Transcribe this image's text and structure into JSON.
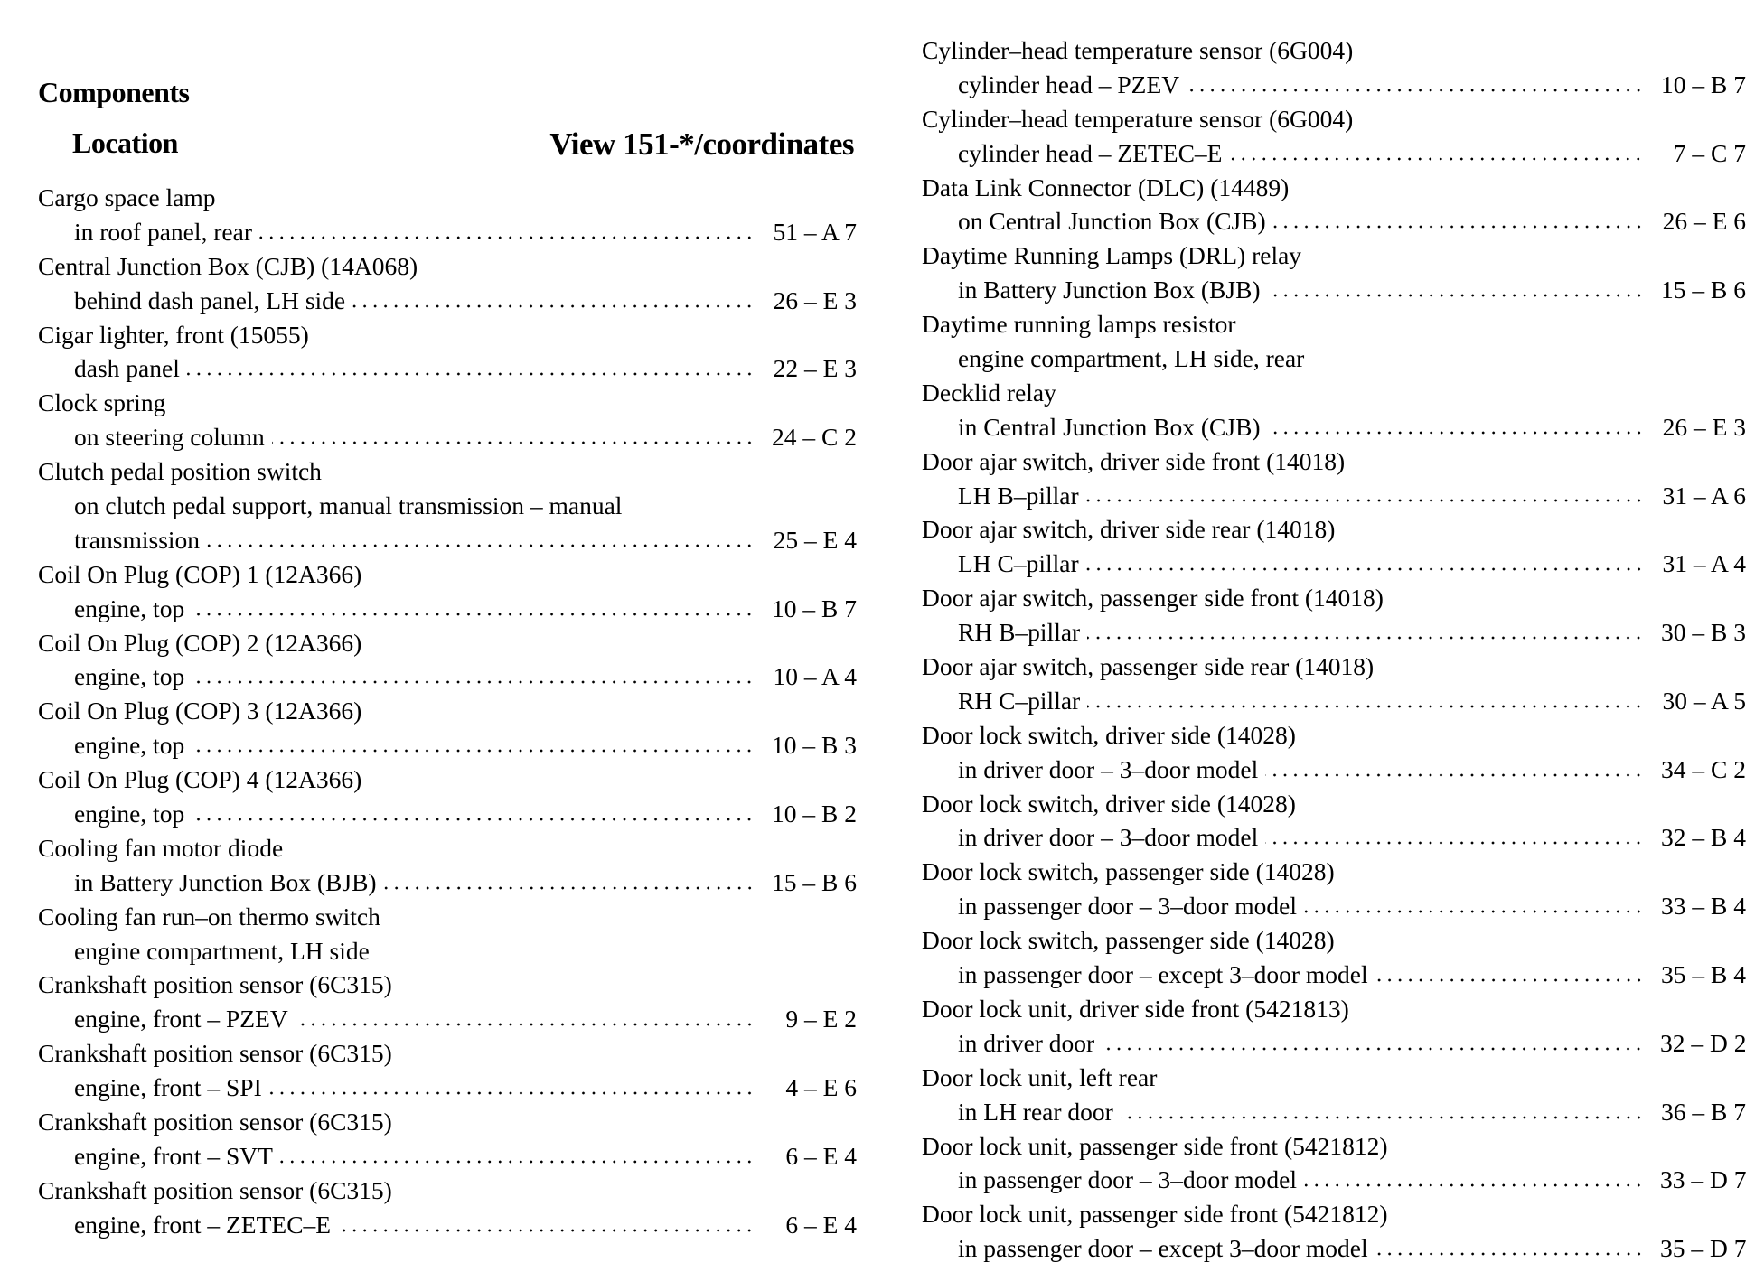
{
  "header": {
    "title": "Components",
    "location_label": "Location",
    "view_label": "View 151-*/coordinates"
  },
  "left": [
    {
      "name": "Cargo space lamp",
      "location": [
        "in roof panel, rear"
      ],
      "ref": "51 – A 7"
    },
    {
      "name": "Central Junction Box (CJB) (14A068)",
      "location": [
        "behind dash panel, LH side"
      ],
      "ref": "26 – E 3"
    },
    {
      "name": "Cigar lighter, front (15055)",
      "location": [
        "dash panel"
      ],
      "ref": "22 – E 3"
    },
    {
      "name": "Clock spring",
      "location": [
        "on steering column"
      ],
      "ref": "24 – C 2"
    },
    {
      "name": "Clutch pedal position switch",
      "location": [
        "on clutch pedal support, manual transmission – manual",
        "transmission"
      ],
      "ref": "25 – E 4"
    },
    {
      "name": "Coil On Plug (COP) 1 (12A366)",
      "location": [
        "engine, top"
      ],
      "ref": "10 – B 7"
    },
    {
      "name": "Coil On Plug (COP) 2 (12A366)",
      "location": [
        "engine, top"
      ],
      "ref": "10 – A 4"
    },
    {
      "name": "Coil On Plug (COP) 3 (12A366)",
      "location": [
        "engine, top"
      ],
      "ref": "10 – B 3"
    },
    {
      "name": "Coil On Plug (COP) 4 (12A366)",
      "location": [
        "engine, top"
      ],
      "ref": "10 – B 2"
    },
    {
      "name": "Cooling fan motor diode",
      "location": [
        "in Battery Junction Box (BJB)"
      ],
      "ref": "15 – B 6"
    },
    {
      "name": "Cooling fan run–on thermo switch",
      "location": [
        "engine compartment, LH side"
      ],
      "ref": ""
    },
    {
      "name": "Crankshaft position sensor (6C315)",
      "location": [
        "engine, front – PZEV"
      ],
      "ref": "9 – E 2"
    },
    {
      "name": "Crankshaft position sensor (6C315)",
      "location": [
        "engine, front – SPI"
      ],
      "ref": "4 – E 6"
    },
    {
      "name": "Crankshaft position sensor (6C315)",
      "location": [
        "engine, front – SVT"
      ],
      "ref": "6 – E 4"
    },
    {
      "name": "Crankshaft position sensor (6C315)",
      "location": [
        "engine, front – ZETEC–E"
      ],
      "ref": "6 – E 4"
    }
  ],
  "right": [
    {
      "name": "Cylinder–head temperature sensor (6G004)",
      "location": [
        "cylinder head – PZEV"
      ],
      "ref": "10 – B 7"
    },
    {
      "name": "Cylinder–head temperature sensor (6G004)",
      "location": [
        "cylinder head – ZETEC–E"
      ],
      "ref": "7 – C 7"
    },
    {
      "name": "Data Link Connector (DLC) (14489)",
      "location": [
        "on Central Junction Box (CJB)"
      ],
      "ref": "26 – E 6"
    },
    {
      "name": "Daytime Running Lamps (DRL) relay",
      "location": [
        "in Battery Junction Box (BJB)"
      ],
      "ref": "15 – B 6"
    },
    {
      "name": "Daytime running lamps resistor",
      "location": [
        "engine compartment, LH side, rear"
      ],
      "ref": ""
    },
    {
      "name": "Decklid relay",
      "location": [
        "in Central Junction Box (CJB)"
      ],
      "ref": "26 – E 3"
    },
    {
      "name": "Door ajar switch, driver side front (14018)",
      "location": [
        "LH B–pillar"
      ],
      "ref": "31 – A 6"
    },
    {
      "name": "Door ajar switch, driver side rear (14018)",
      "location": [
        "LH C–pillar"
      ],
      "ref": "31 – A 4"
    },
    {
      "name": "Door ajar switch, passenger side front (14018)",
      "location": [
        "RH B–pillar"
      ],
      "ref": "30 – B 3"
    },
    {
      "name": "Door ajar switch, passenger side rear (14018)",
      "location": [
        "RH C–pillar"
      ],
      "ref": "30 – A 5"
    },
    {
      "name": "Door lock switch, driver side (14028)",
      "location": [
        "in driver door – 3–door model"
      ],
      "ref": "34 – C 2"
    },
    {
      "name": "Door lock switch, driver side (14028)",
      "location": [
        "in driver door – 3–door model"
      ],
      "ref": "32 – B 4"
    },
    {
      "name": "Door lock switch, passenger side (14028)",
      "location": [
        "in passenger door – 3–door model"
      ],
      "ref": "33 – B 4"
    },
    {
      "name": "Door lock switch, passenger side (14028)",
      "location": [
        "in passenger door – except 3–door model"
      ],
      "ref": "35 – B 4"
    },
    {
      "name": "Door lock unit, driver side front (5421813)",
      "location": [
        "in driver door"
      ],
      "ref": "32 – D 2"
    },
    {
      "name": "Door lock unit, left rear",
      "location": [
        "in LH rear door"
      ],
      "ref": "36 – B 7"
    },
    {
      "name": "Door lock unit, passenger side front (5421812)",
      "location": [
        "in passenger door – 3–door model"
      ],
      "ref": "33 – D 7"
    },
    {
      "name": "Door lock unit, passenger side front (5421812)",
      "location": [
        "in passenger door – except 3–door model"
      ],
      "ref": "35 – D 7"
    }
  ]
}
